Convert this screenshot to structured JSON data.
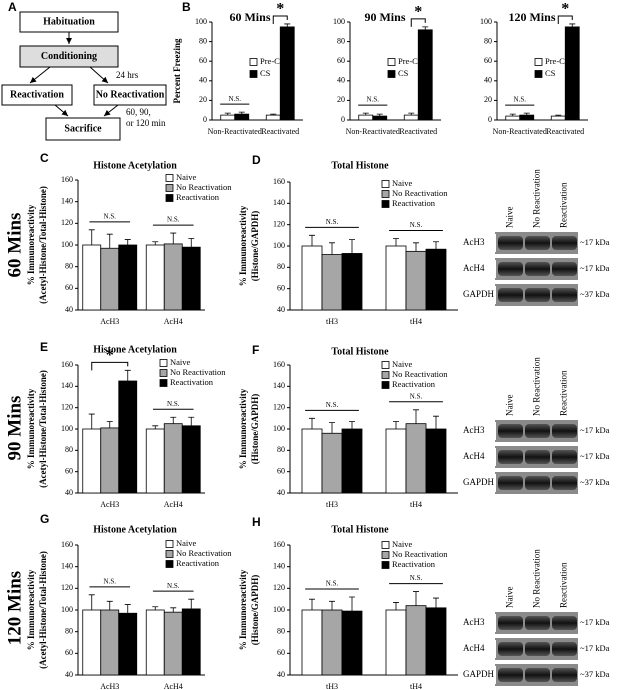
{
  "diagram": {
    "panel": "A",
    "nodes": [
      {
        "label": "Habituation"
      },
      {
        "label": "Conditioning"
      },
      {
        "label": "Reactivation"
      },
      {
        "label": "No Reactivation"
      },
      {
        "label": "Sacrifice"
      }
    ],
    "annotations": [
      "24 hrs",
      "60, 90,",
      "or 120 min"
    ]
  },
  "row_labels": [
    "60 Mins",
    "90 Mins",
    "120 Mins"
  ],
  "chart_data": [
    {
      "type": "bar",
      "panel": "B",
      "title": "60 Mins",
      "ylabel": [
        "Percent Freezing"
      ],
      "categories": [
        "Non-Reactivated",
        "Reactivated"
      ],
      "series": [
        {
          "name": "Pre-CS",
          "color": "#ffffff",
          "values": [
            5,
            5
          ],
          "errors": [
            2,
            1
          ]
        },
        {
          "name": "CS",
          "color": "#000000",
          "values": [
            6,
            95
          ],
          "errors": [
            2,
            3
          ]
        }
      ],
      "ylim": [
        0,
        100
      ],
      "yticks": [
        0,
        20,
        40,
        60,
        80,
        100
      ],
      "group_annotations": [
        "N.S.",
        "*"
      ]
    },
    {
      "type": "bar",
      "title": "90 Mins",
      "categories": [
        "Non-Reactivated",
        "Reactivated"
      ],
      "series": [
        {
          "name": "Pre-CS",
          "color": "#ffffff",
          "values": [
            5,
            5
          ],
          "errors": [
            2,
            2
          ]
        },
        {
          "name": "CS",
          "color": "#000000",
          "values": [
            4,
            92
          ],
          "errors": [
            2,
            3
          ]
        }
      ],
      "ylim": [
        0,
        100
      ],
      "yticks": [
        0,
        20,
        40,
        60,
        80,
        100
      ],
      "group_annotations": [
        "N.S.",
        "*"
      ]
    },
    {
      "type": "bar",
      "title": "120 Mins",
      "categories": [
        "Non-Reactivated",
        "Reactivated"
      ],
      "series": [
        {
          "name": "Pre-CS",
          "color": "#ffffff",
          "values": [
            4,
            4
          ],
          "errors": [
            2,
            1
          ]
        },
        {
          "name": "CS",
          "color": "#000000",
          "values": [
            5,
            95
          ],
          "errors": [
            2,
            3
          ]
        }
      ],
      "ylim": [
        0,
        100
      ],
      "yticks": [
        0,
        20,
        40,
        60,
        80,
        100
      ],
      "group_annotations": [
        "N.S.",
        "*"
      ]
    },
    {
      "type": "bar",
      "panel": "C",
      "title": "Histone Acetylation",
      "ylabel": [
        "% Immunoreactivity",
        "(Acetyl-Histone/Total-Histone)"
      ],
      "categories": [
        "AcH3",
        "AcH4"
      ],
      "series": [
        {
          "name": "Naive",
          "color": "#ffffff",
          "values": [
            100,
            100
          ],
          "errors": [
            14,
            3
          ]
        },
        {
          "name": "No Reactivation",
          "color": "#a6a6a6",
          "values": [
            97,
            101
          ],
          "errors": [
            13,
            10
          ]
        },
        {
          "name": "Reactivation",
          "color": "#000000",
          "values": [
            100,
            98
          ],
          "errors": [
            5,
            8
          ]
        }
      ],
      "ylim": [
        40,
        160
      ],
      "yticks": [
        40,
        60,
        80,
        100,
        120,
        140,
        160
      ],
      "group_annotations": [
        "N.S.",
        "N.S."
      ]
    },
    {
      "type": "bar",
      "panel": "D",
      "title": "Total Histone",
      "ylabel": [
        "% Immunoreactivity",
        "(Histone/GAPDH)"
      ],
      "categories": [
        "tH3",
        "tH4"
      ],
      "series": [
        {
          "name": "Naive",
          "color": "#ffffff",
          "values": [
            100,
            100
          ],
          "errors": [
            10,
            7
          ]
        },
        {
          "name": "No Reactivation",
          "color": "#a6a6a6",
          "values": [
            92,
            95
          ],
          "errors": [
            11,
            8
          ]
        },
        {
          "name": "Reactivation",
          "color": "#000000",
          "values": [
            93,
            97
          ],
          "errors": [
            13,
            7
          ]
        }
      ],
      "ylim": [
        40,
        160
      ],
      "yticks": [
        40,
        60,
        80,
        100,
        120,
        140,
        160
      ],
      "group_annotations": [
        "N.S.",
        "N.S."
      ]
    },
    {
      "type": "bar",
      "panel": "E",
      "title": "Histone Acetylation",
      "ylabel": [
        "% Immunoreactivity",
        "(Acetyl-Histone/Total-Histone)"
      ],
      "categories": [
        "AcH3",
        "AcH4"
      ],
      "series": [
        {
          "name": "Naive",
          "color": "#ffffff",
          "values": [
            100,
            100
          ],
          "errors": [
            14,
            3
          ]
        },
        {
          "name": "No Reactivation",
          "color": "#a6a6a6",
          "values": [
            101,
            105
          ],
          "errors": [
            6,
            6
          ]
        },
        {
          "name": "Reactivation",
          "color": "#000000",
          "values": [
            145,
            103
          ],
          "errors": [
            10,
            8
          ]
        }
      ],
      "ylim": [
        40,
        160
      ],
      "yticks": [
        40,
        60,
        80,
        100,
        120,
        140,
        160
      ],
      "group_annotations": [
        "*",
        "N.S."
      ]
    },
    {
      "type": "bar",
      "panel": "F",
      "title": "Total Histone",
      "ylabel": [
        "% Immunoreactivity",
        "(Histone/GAPDH)"
      ],
      "categories": [
        "tH3",
        "tH4"
      ],
      "series": [
        {
          "name": "Naive",
          "color": "#ffffff",
          "values": [
            100,
            100
          ],
          "errors": [
            10,
            7
          ]
        },
        {
          "name": "No Reactivation",
          "color": "#a6a6a6",
          "values": [
            96,
            105
          ],
          "errors": [
            10,
            13
          ]
        },
        {
          "name": "Reactivation",
          "color": "#000000",
          "values": [
            100,
            100
          ],
          "errors": [
            7,
            12
          ]
        }
      ],
      "ylim": [
        40,
        160
      ],
      "yticks": [
        40,
        60,
        80,
        100,
        120,
        140,
        160
      ],
      "group_annotations": [
        "N.S.",
        "N.S."
      ]
    },
    {
      "type": "bar",
      "panel": "G",
      "title": "Histone Acetylation",
      "ylabel": [
        "% Immunoreactivity",
        "(Acetyl-Histone/Total-Histone)"
      ],
      "categories": [
        "AcH3",
        "AcH4"
      ],
      "series": [
        {
          "name": "Naive",
          "color": "#ffffff",
          "values": [
            100,
            100
          ],
          "errors": [
            14,
            3
          ]
        },
        {
          "name": "No Reactivation",
          "color": "#a6a6a6",
          "values": [
            100,
            98
          ],
          "errors": [
            8,
            4
          ]
        },
        {
          "name": "Reactivation",
          "color": "#000000",
          "values": [
            97,
            101
          ],
          "errors": [
            8,
            9
          ]
        }
      ],
      "ylim": [
        40,
        160
      ],
      "yticks": [
        40,
        60,
        80,
        100,
        120,
        140,
        160
      ],
      "group_annotations": [
        "N.S.",
        "N.S."
      ]
    },
    {
      "type": "bar",
      "panel": "H",
      "title": "Total Histone",
      "ylabel": [
        "% Immunoreactivity",
        "(Histone/GAPDH)"
      ],
      "categories": [
        "tH3",
        "tH4"
      ],
      "series": [
        {
          "name": "Naive",
          "color": "#ffffff",
          "values": [
            100,
            100
          ],
          "errors": [
            10,
            7
          ]
        },
        {
          "name": "No Reactivation",
          "color": "#a6a6a6",
          "values": [
            100,
            104
          ],
          "errors": [
            8,
            13
          ]
        },
        {
          "name": "Reactivation",
          "color": "#000000",
          "values": [
            99,
            102
          ],
          "errors": [
            13,
            9
          ]
        }
      ],
      "ylim": [
        40,
        160
      ],
      "yticks": [
        40,
        60,
        80,
        100,
        120,
        140,
        160
      ],
      "group_annotations": [
        "N.S.",
        "N.S."
      ]
    }
  ],
  "blots": [
    {
      "columns": [
        "Naive",
        "No Reactivation",
        "Reactivation"
      ],
      "rows": [
        {
          "name": "AcH3",
          "size": "~17 kDa"
        },
        {
          "name": "AcH4",
          "size": "~17 kDa"
        },
        {
          "name": "GAPDH",
          "size": "~37 kDa"
        }
      ]
    },
    {
      "columns": [
        "Naive",
        "No Reactivation",
        "Reactivation"
      ],
      "rows": [
        {
          "name": "AcH3",
          "size": "~17 kDa"
        },
        {
          "name": "AcH4",
          "size": "~17 kDa"
        },
        {
          "name": "GAPDH",
          "size": "~37 kDa"
        }
      ]
    },
    {
      "columns": [
        "Naive",
        "No Reactivation",
        "Reactivation"
      ],
      "rows": [
        {
          "name": "AcH3",
          "size": "~17 kDa"
        },
        {
          "name": "AcH4",
          "size": "~17 kDa"
        },
        {
          "name": "GAPDH",
          "size": "~37 kDa"
        }
      ]
    }
  ]
}
